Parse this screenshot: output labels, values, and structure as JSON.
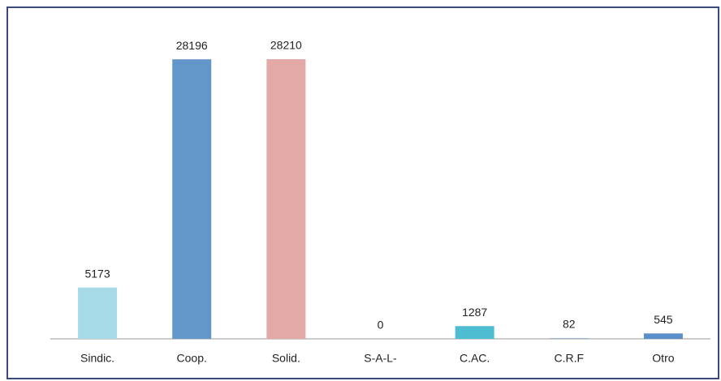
{
  "chart_data": {
    "type": "bar",
    "categories": [
      "Sindic.",
      "Coop.",
      "Solid.",
      "S-A-L-",
      "C.AC.",
      "C.R.F",
      "Otro"
    ],
    "values": [
      5173,
      28196,
      28210,
      0,
      1287,
      82,
      545
    ],
    "colors": [
      "#a6dae7",
      "#6497c9",
      "#e2a9a7",
      "#8fb3d9",
      "#4fbdd1",
      "#9bb8d6",
      "#5b8fc9"
    ],
    "grid": false
  }
}
